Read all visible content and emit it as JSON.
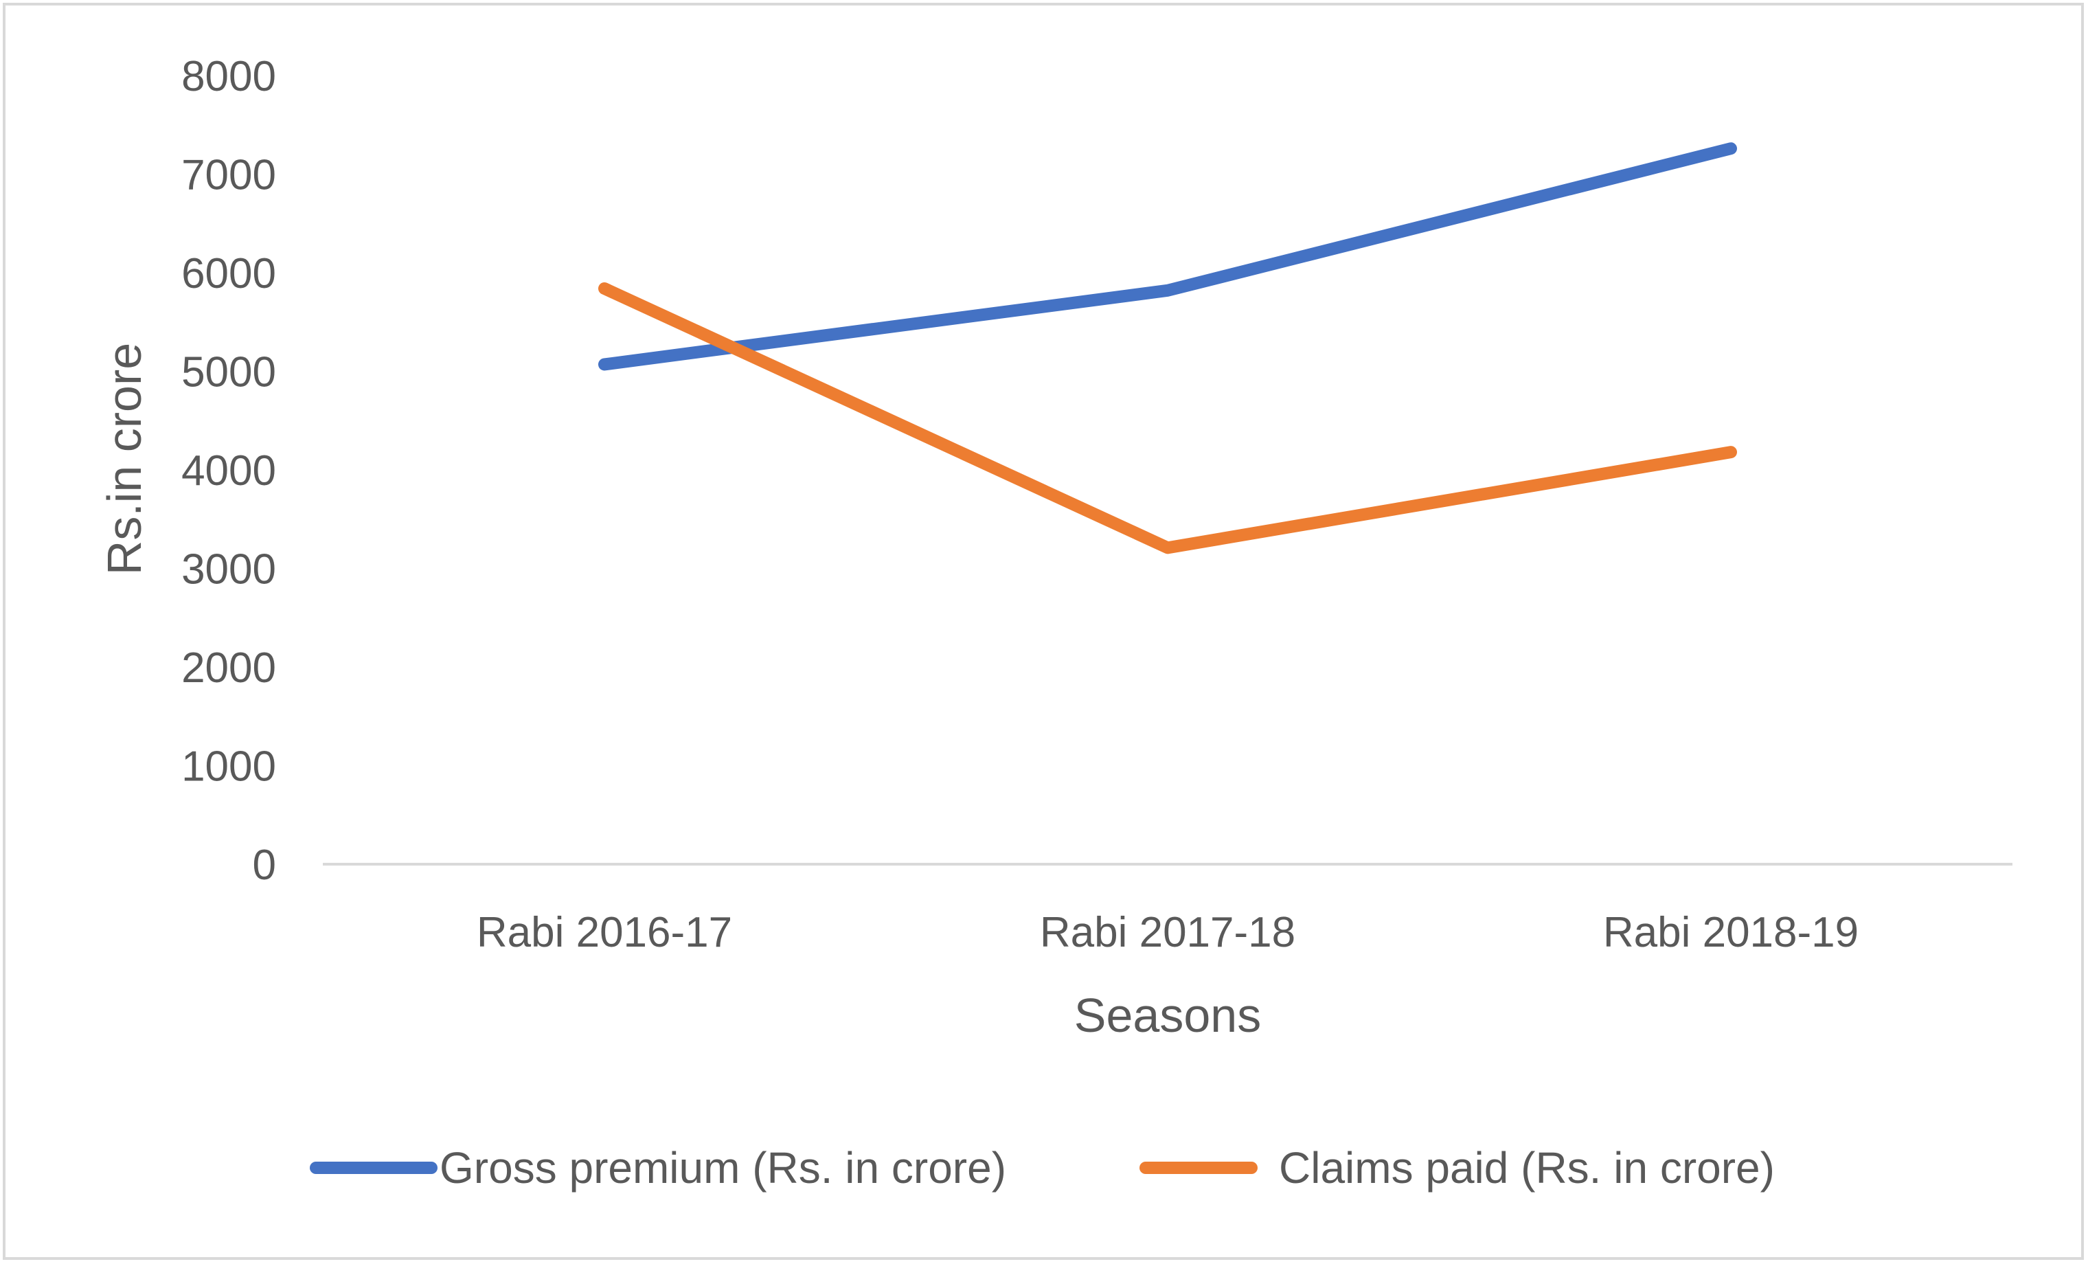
{
  "chart_data": {
    "type": "line",
    "categories": [
      "Rabi 2016-17",
      "Rabi 2017-18",
      "Rabi 2018-19"
    ],
    "series": [
      {
        "name": "Gross premium (Rs. in crore)",
        "values": [
          5070,
          5820,
          7260
        ],
        "color": "#4472C4"
      },
      {
        "name": "Claims paid (Rs. in crore)",
        "values": [
          5840,
          3210,
          4180
        ],
        "color": "#ED7D31"
      }
    ],
    "title": "",
    "xlabel": "Seasons",
    "ylabel": "Rs.in crore",
    "ylim": [
      0,
      8000
    ],
    "yticks": [
      "0",
      "1000",
      "2000",
      "3000",
      "4000",
      "5000",
      "6000",
      "7000",
      "8000"
    ],
    "grid": false,
    "legend": "bottom",
    "axis_color": "#D9D9D9",
    "border_color": "#D9D9D9"
  }
}
